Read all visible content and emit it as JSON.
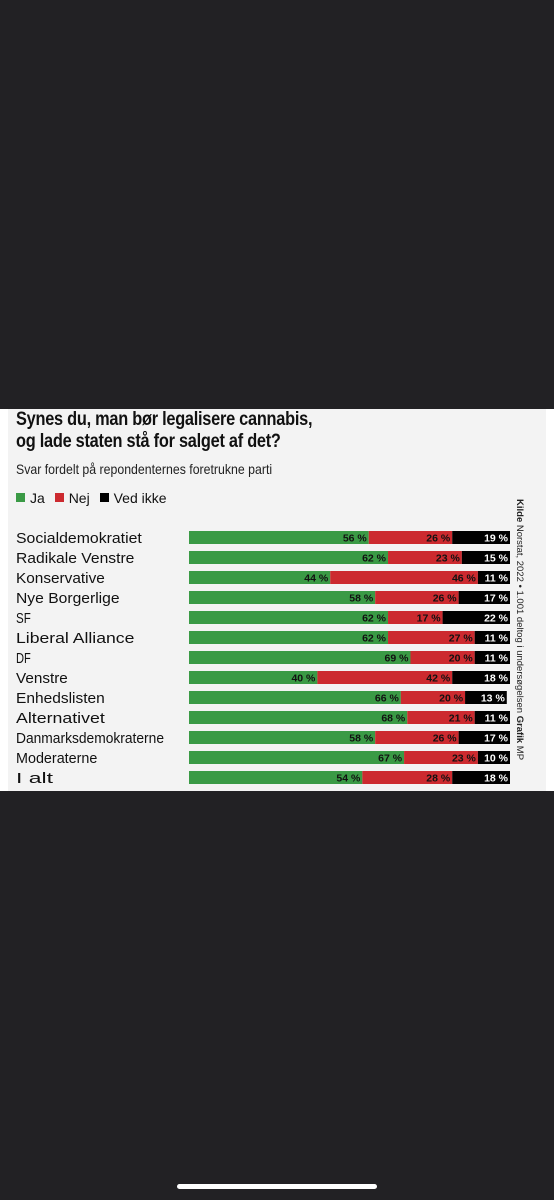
{
  "chart_data": {
    "type": "bar",
    "orientation": "horizontal",
    "stacked": true,
    "title": "Synes du, man bør legalisere cannabis, og lade staten stå for salget af det?",
    "title_lines": [
      "Synes du, man bør legalisere cannabis,",
      "og lade staten stå for salget af det?"
    ],
    "subtitle": "Svar fordelt på repondenternes foretrukne parti",
    "legend_position": "top-left",
    "categories": [
      "Socialdemokratiet",
      "Radikale Venstre",
      "Konservative",
      "Nye Borgerlige",
      "SF",
      "Liberal Alliance",
      "DF",
      "Venstre",
      "Enhedslisten",
      "Alternativet",
      "Danmarksdemokraterne",
      "Moderaterne",
      "I alt"
    ],
    "series": [
      {
        "name": "Ja",
        "color": "#3a9a45",
        "values": [
          56,
          62,
          44,
          58,
          62,
          62,
          69,
          40,
          66,
          68,
          58,
          67,
          54
        ]
      },
      {
        "name": "Nej",
        "color": "#cc2a2f",
        "values": [
          26,
          23,
          46,
          26,
          17,
          27,
          20,
          42,
          20,
          21,
          26,
          23,
          28
        ]
      },
      {
        "name": "Ved ikke",
        "color": "#000000",
        "values": [
          19,
          15,
          11,
          17,
          22,
          11,
          11,
          18,
          13,
          11,
          17,
          10,
          18
        ]
      }
    ],
    "value_suffix": " %",
    "xlim": [
      0,
      100
    ]
  },
  "source": {
    "label": "Kilde",
    "text": " Norstat, 2022 • 1.001 deltog i undersøgelsen ",
    "credit_bold": "Grafik",
    "credit": " MP"
  }
}
